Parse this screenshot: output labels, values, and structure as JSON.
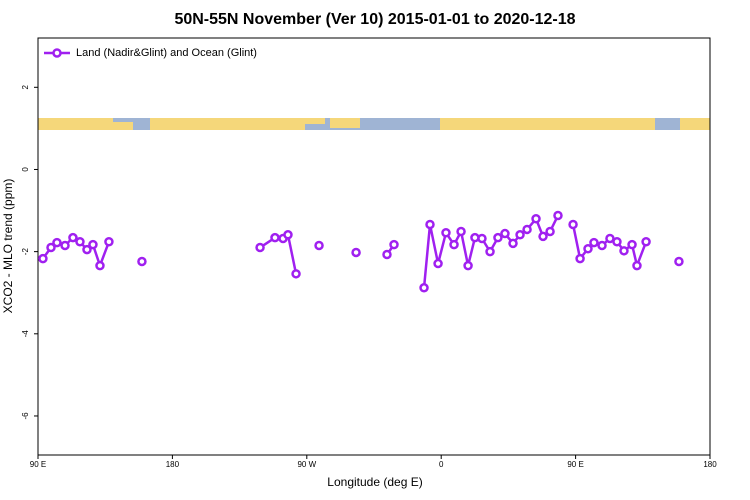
{
  "chart_data": {
    "type": "line",
    "title": "50N-55N November (Ver 10)   2015-01-01 to 2020-12-18",
    "x_label": "Longitude (deg E)",
    "y_label": "XCO2 - MLO trend (ppm)",
    "xlim": [
      90,
      540
    ],
    "xticks": [
      {
        "value": 90,
        "label": "90 E"
      },
      {
        "value": 180,
        "label": "180"
      },
      {
        "value": 270,
        "label": "90 W"
      },
      {
        "value": 360,
        "label": "0"
      },
      {
        "value": 450,
        "label": "90 E"
      },
      {
        "value": 540,
        "label": "180"
      }
    ],
    "ylim": [
      -6.95,
      3.2
    ],
    "yticks": [
      2,
      0,
      -2,
      -4,
      -6
    ],
    "legend": "top-left",
    "x": [
      93.3,
      98.7,
      102.7,
      108.1,
      113.4,
      118.1,
      122.8,
      126.8,
      131.5,
      137.5,
      null,
      159.6,
      null,
      238.7,
      248.7,
      254.1,
      257.4,
      262.8,
      null,
      278.2,
      null,
      303.0,
      null,
      323.7,
      328.4,
      null,
      348.5,
      352.5,
      357.9,
      363.2,
      368.6,
      373.3,
      378.0,
      382.6,
      387.3,
      392.7,
      398.0,
      402.7,
      408.1,
      412.8,
      417.5,
      423.5,
      428.2,
      432.9,
      438.2,
      null,
      448.3,
      453.0,
      458.3,
      462.3,
      467.7,
      473.0,
      477.7,
      482.4,
      487.8,
      491.1,
      497.2,
      null,
      519.2
    ],
    "series": [
      {
        "name": "Land (Nadir&Glint) and Ocean (Glint)",
        "color": "#a020f0",
        "values": [
          -2.17,
          -1.9,
          -1.78,
          -1.85,
          -1.66,
          -1.76,
          -1.95,
          -1.83,
          -2.34,
          -1.76,
          null,
          -2.24,
          null,
          -1.9,
          -1.66,
          -1.68,
          -1.59,
          -2.54,
          null,
          -1.85,
          null,
          -2.02,
          null,
          -2.07,
          -1.83,
          null,
          -2.88,
          -1.34,
          -2.29,
          -1.54,
          -1.83,
          -1.51,
          -2.34,
          -1.66,
          -1.68,
          -2.0,
          -1.66,
          -1.56,
          -1.8,
          -1.59,
          -1.46,
          -1.2,
          -1.63,
          -1.51,
          -1.12,
          null,
          -1.34,
          -2.17,
          -1.93,
          -1.78,
          -1.85,
          -1.68,
          -1.76,
          -1.98,
          -1.83,
          -2.34,
          -1.76,
          null,
          -2.24
        ]
      }
    ]
  }
}
